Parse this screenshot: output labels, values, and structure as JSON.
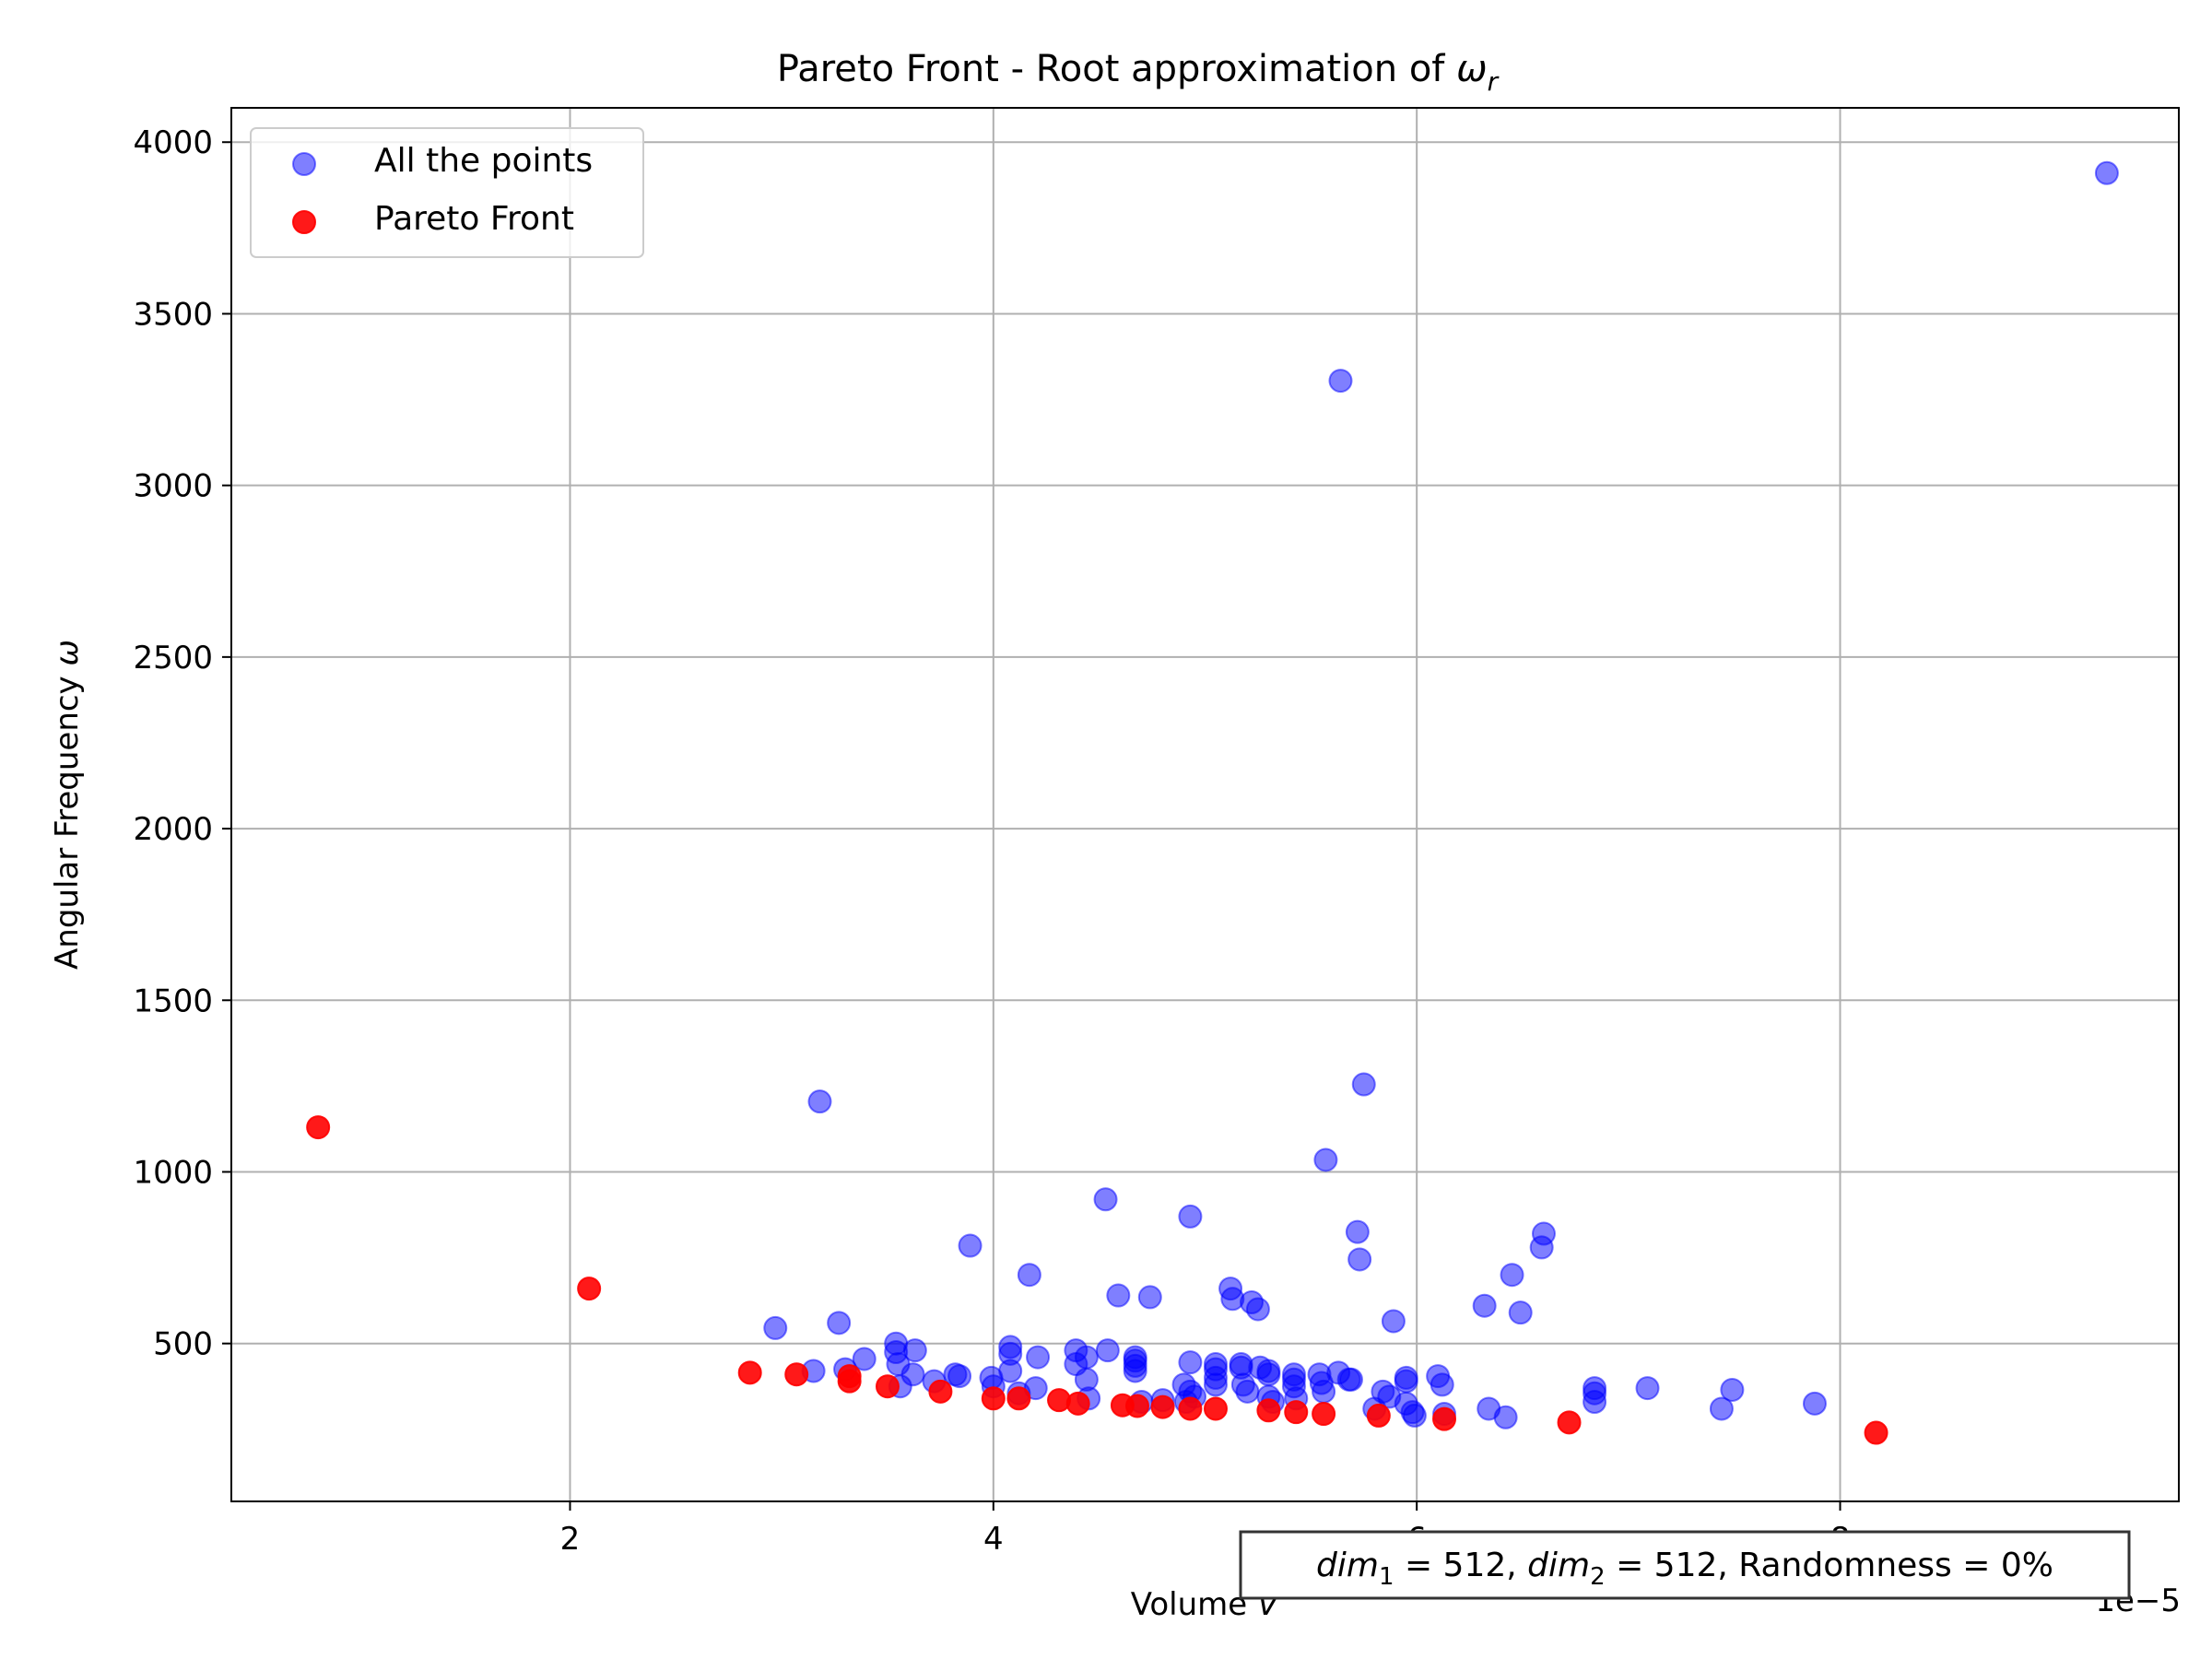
{
  "chart_data": {
    "type": "scatter",
    "title_main": "Pareto Front - Root approximation of ",
    "title_symbol": "ω",
    "title_subscript": "r",
    "xlabel_main": "Volume ",
    "xlabel_symbol": "V",
    "ylabel_main": "Angular Frequency ",
    "ylabel_symbol": "ω",
    "x_offset_label": "1e−5",
    "xlim": [
      0.4,
      9.6
    ],
    "ylim": [
      40,
      4100
    ],
    "xticks": [
      2,
      4,
      6,
      8
    ],
    "xtick_labels": [
      "2",
      "4",
      "6",
      "8"
    ],
    "yticks": [
      500,
      1000,
      1500,
      2000,
      2500,
      3000,
      3500,
      4000
    ],
    "ytick_labels": [
      "500",
      "1000",
      "1500",
      "2000",
      "2500",
      "3000",
      "3500",
      "4000"
    ],
    "grid": true,
    "legend_position": "top-left",
    "annotation": {
      "dim1_name": "dim",
      "dim1_sub": "1",
      "dim1_value": " = 512, ",
      "dim2_name": "dim",
      "dim2_sub": "2",
      "dim2_value": " = 512, Randomness = 0%"
    },
    "series": [
      {
        "name": "All the points",
        "color": "#0000ff",
        "opacity": 0.5,
        "points": [
          [
            2.97,
            545
          ],
          [
            3.18,
            1205
          ],
          [
            3.27,
            560
          ],
          [
            3.15,
            420
          ],
          [
            3.3,
            425
          ],
          [
            3.39,
            455
          ],
          [
            3.54,
            500
          ],
          [
            3.54,
            475
          ],
          [
            3.55,
            440
          ],
          [
            3.56,
            375
          ],
          [
            3.63,
            480
          ],
          [
            3.62,
            410
          ],
          [
            3.72,
            390
          ],
          [
            3.82,
            410
          ],
          [
            3.84,
            405
          ],
          [
            3.89,
            785
          ],
          [
            3.99,
            400
          ],
          [
            4.0,
            375
          ],
          [
            4.08,
            490
          ],
          [
            4.08,
            470
          ],
          [
            4.08,
            420
          ],
          [
            4.12,
            355
          ],
          [
            4.17,
            700
          ],
          [
            4.2,
            370
          ],
          [
            4.21,
            460
          ],
          [
            4.39,
            480
          ],
          [
            4.39,
            440
          ],
          [
            4.44,
            460
          ],
          [
            4.44,
            395
          ],
          [
            4.45,
            340
          ],
          [
            4.53,
            920
          ],
          [
            4.54,
            480
          ],
          [
            4.59,
            640
          ],
          [
            4.67,
            460
          ],
          [
            4.67,
            450
          ],
          [
            4.67,
            435
          ],
          [
            4.67,
            420
          ],
          [
            4.7,
            330
          ],
          [
            4.74,
            635
          ],
          [
            4.8,
            335
          ],
          [
            4.9,
            380
          ],
          [
            4.91,
            330
          ],
          [
            4.93,
            870
          ],
          [
            4.93,
            445
          ],
          [
            4.93,
            360
          ],
          [
            4.95,
            345
          ],
          [
            5.05,
            440
          ],
          [
            5.05,
            425
          ],
          [
            5.05,
            400
          ],
          [
            5.05,
            380
          ],
          [
            5.12,
            660
          ],
          [
            5.13,
            630
          ],
          [
            5.17,
            440
          ],
          [
            5.17,
            430
          ],
          [
            5.18,
            380
          ],
          [
            5.2,
            360
          ],
          [
            5.22,
            620
          ],
          [
            5.25,
            600
          ],
          [
            5.26,
            430
          ],
          [
            5.3,
            420
          ],
          [
            5.3,
            410
          ],
          [
            5.3,
            345
          ],
          [
            5.32,
            330
          ],
          [
            5.42,
            410
          ],
          [
            5.42,
            395
          ],
          [
            5.42,
            375
          ],
          [
            5.43,
            340
          ],
          [
            5.54,
            410
          ],
          [
            5.55,
            385
          ],
          [
            5.56,
            360
          ],
          [
            5.57,
            1035
          ],
          [
            5.64,
            3305
          ],
          [
            5.63,
            415
          ],
          [
            5.68,
            395
          ],
          [
            5.69,
            395
          ],
          [
            5.72,
            825
          ],
          [
            5.73,
            745
          ],
          [
            5.75,
            1255
          ],
          [
            5.8,
            310
          ],
          [
            5.84,
            360
          ],
          [
            5.87,
            345
          ],
          [
            5.89,
            565
          ],
          [
            5.95,
            400
          ],
          [
            5.95,
            390
          ],
          [
            5.95,
            325
          ],
          [
            5.98,
            300
          ],
          [
            5.99,
            290
          ],
          [
            6.1,
            405
          ],
          [
            6.12,
            380
          ],
          [
            6.13,
            295
          ],
          [
            6.32,
            610
          ],
          [
            6.34,
            310
          ],
          [
            6.42,
            285
          ],
          [
            6.45,
            700
          ],
          [
            6.49,
            590
          ],
          [
            6.6,
            820
          ],
          [
            6.59,
            780
          ],
          [
            6.84,
            370
          ],
          [
            6.84,
            355
          ],
          [
            6.84,
            330
          ],
          [
            7.09,
            370
          ],
          [
            7.44,
            310
          ],
          [
            7.49,
            365
          ],
          [
            7.88,
            325
          ],
          [
            9.26,
            3910
          ]
        ]
      },
      {
        "name": "Pareto Front",
        "color": "#ff0000",
        "opacity": 0.9,
        "points": [
          [
            0.81,
            1130
          ],
          [
            2.09,
            660
          ],
          [
            2.85,
            415
          ],
          [
            3.07,
            410
          ],
          [
            3.32,
            405
          ],
          [
            3.32,
            390
          ],
          [
            3.5,
            375
          ],
          [
            3.75,
            360
          ],
          [
            4.0,
            340
          ],
          [
            4.12,
            340
          ],
          [
            4.31,
            335
          ],
          [
            4.4,
            325
          ],
          [
            4.61,
            320
          ],
          [
            4.68,
            318
          ],
          [
            4.8,
            315
          ],
          [
            4.93,
            310
          ],
          [
            5.05,
            310
          ],
          [
            5.3,
            305
          ],
          [
            5.43,
            300
          ],
          [
            5.56,
            295
          ],
          [
            5.82,
            290
          ],
          [
            6.13,
            280
          ],
          [
            6.72,
            270
          ],
          [
            8.17,
            240
          ]
        ]
      }
    ]
  }
}
